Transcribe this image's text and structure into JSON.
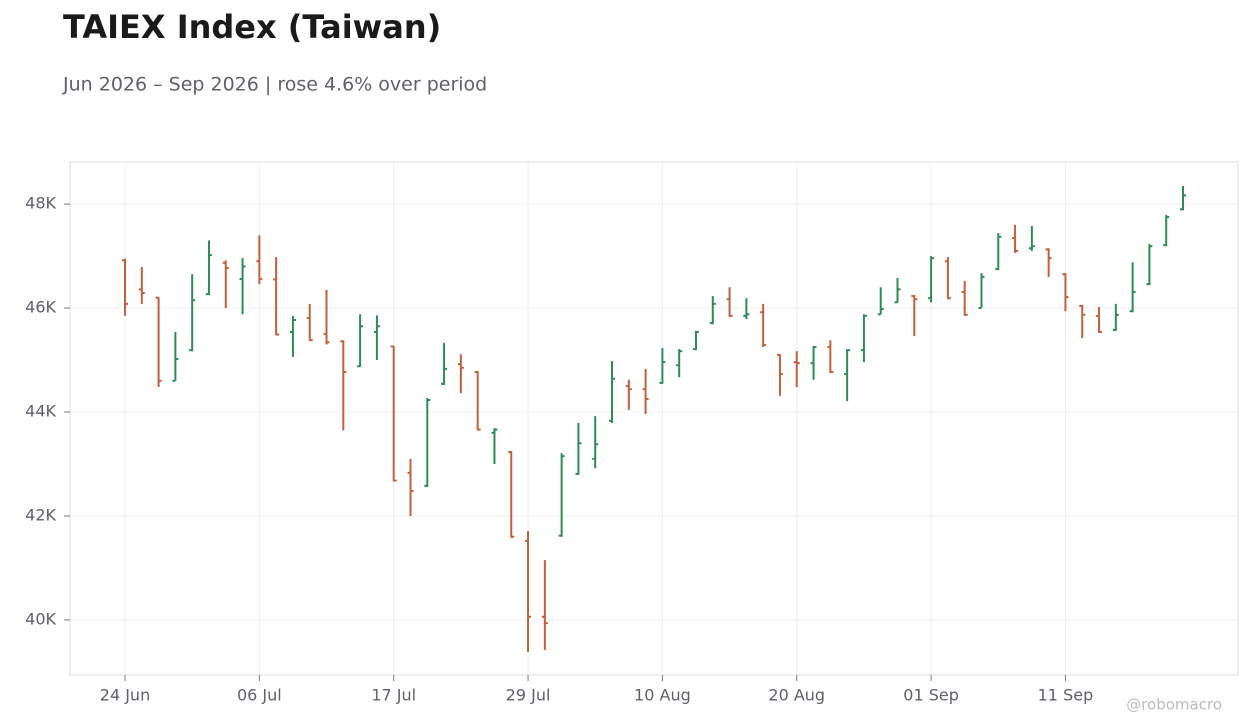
{
  "chart_data": {
    "type": "ohlc",
    "title": "TAIEX Index (Taiwan)",
    "subtitle": "Jun 2026 – Sep 2026 | rose 4.6% over period",
    "watermark": "@robomacro",
    "up_color": "#2e8b57",
    "down_color": "#c0603c",
    "grid": true,
    "categories": [
      "24 Jun",
      null,
      null,
      null,
      null,
      null,
      null,
      null,
      "06 Jul",
      null,
      null,
      null,
      null,
      null,
      null,
      null,
      "17 Jul",
      null,
      null,
      null,
      null,
      null,
      null,
      null,
      "29 Jul",
      null,
      null,
      null,
      null,
      null,
      null,
      null,
      "10 Aug",
      null,
      null,
      null,
      null,
      null,
      null,
      null,
      "20 Aug",
      null,
      null,
      null,
      null,
      null,
      null,
      null,
      "01 Sep",
      null,
      null,
      null,
      null,
      null,
      null,
      null,
      "11 Sep",
      null,
      null,
      null,
      null,
      null,
      null,
      null
    ],
    "open": [
      46920,
      46360,
      46200,
      44600,
      45190,
      46270,
      46870,
      46560,
      46900,
      46550,
      45540,
      45810,
      45500,
      45360,
      44880,
      45540,
      45260,
      42830,
      42580,
      44540,
      44920,
      44770,
      43600,
      43230,
      41520,
      40060,
      41620,
      42810,
      43100,
      43830,
      44500,
      44440,
      44560,
      44900,
      45210,
      45710,
      46170,
      45850,
      45920,
      45100,
      44960,
      44940,
      45250,
      44730,
      45190,
      45880,
      46110,
      46230,
      46190,
      46900,
      46310,
      46000,
      46750,
      47350,
      47150,
      47130,
      46650,
      46040,
      45850,
      45580,
      45940,
      46460,
      47210,
      47900
    ],
    "high": [
      46950,
      46790,
      46210,
      45540,
      46650,
      47300,
      46920,
      46960,
      47400,
      46980,
      45850,
      46080,
      46350,
      45380,
      45880,
      45860,
      45270,
      43100,
      44270,
      45330,
      45110,
      44790,
      43690,
      43250,
      41710,
      41150,
      43210,
      43790,
      43920,
      44980,
      44620,
      44830,
      45230,
      45210,
      45560,
      46230,
      46400,
      46190,
      46080,
      45110,
      45170,
      45270,
      45380,
      45210,
      45880,
      46400,
      46580,
      46250,
      47000,
      46980,
      46520,
      46670,
      47440,
      47600,
      47580,
      47150,
      46670,
      46060,
      46020,
      46080,
      46880,
      47230,
      47790,
      48350
    ],
    "low": [
      45850,
      46080,
      44480,
      44600,
      45170,
      46250,
      46000,
      45880,
      46460,
      45480,
      45060,
      45370,
      45300,
      43650,
      44870,
      45000,
      42670,
      42000,
      42560,
      44520,
      44360,
      43650,
      43000,
      41580,
      39380,
      39420,
      41600,
      42790,
      42920,
      43790,
      44040,
      43960,
      44540,
      44670,
      45190,
      45690,
      45830,
      45790,
      45250,
      44310,
      44480,
      44620,
      44750,
      44210,
      44960,
      45880,
      46100,
      45460,
      46110,
      46170,
      45850,
      46000,
      46730,
      47060,
      47100,
      46600,
      45940,
      45420,
      45520,
      45560,
      45920,
      46440,
      47190,
      47880
    ],
    "close": [
      46080,
      46290,
      44600,
      45020,
      46150,
      47020,
      46770,
      46800,
      46560,
      45490,
      45770,
      45380,
      45340,
      44770,
      45650,
      45650,
      42680,
      42480,
      44230,
      44830,
      44850,
      43660,
      43660,
      41600,
      40060,
      39940,
      43150,
      43400,
      43380,
      44640,
      44440,
      44250,
      44960,
      45170,
      45540,
      46080,
      45850,
      45880,
      45290,
      44730,
      44940,
      45250,
      44770,
      45190,
      45850,
      45980,
      46360,
      46170,
      46960,
      46190,
      45870,
      46600,
      47370,
      47100,
      47190,
      46960,
      46210,
      45870,
      45540,
      45870,
      46310,
      47190,
      47750,
      48170
    ],
    "ylim": [
      38940,
      48810
    ],
    "yticks": [
      {
        "value": 40000,
        "label": "40K"
      },
      {
        "value": 42000,
        "label": "42K"
      },
      {
        "value": 44000,
        "label": "44K"
      },
      {
        "value": 46000,
        "label": "46K"
      },
      {
        "value": 48000,
        "label": "48K"
      }
    ]
  }
}
